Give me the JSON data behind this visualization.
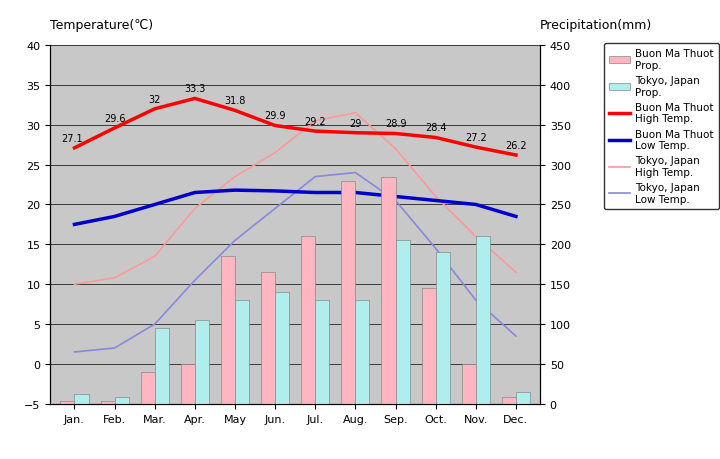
{
  "months": [
    "Jan.",
    "Feb.",
    "Mar.",
    "Apr.",
    "May",
    "Jun.",
    "Jul.",
    "Aug.",
    "Sep.",
    "Oct.",
    "Nov.",
    "Dec."
  ],
  "bmt_precip": [
    3,
    3,
    40,
    50,
    185,
    165,
    210,
    280,
    285,
    145,
    50,
    8
  ],
  "tokyo_precip": [
    12,
    8,
    95,
    105,
    130,
    140,
    130,
    130,
    205,
    190,
    210,
    15
  ],
  "bmt_high": [
    27.1,
    29.6,
    32.0,
    33.3,
    31.8,
    29.9,
    29.2,
    29.0,
    28.9,
    28.4,
    27.2,
    26.2
  ],
  "bmt_low": [
    17.5,
    18.5,
    20.0,
    21.5,
    21.8,
    21.7,
    21.5,
    21.5,
    21.0,
    20.5,
    20.0,
    18.5
  ],
  "tokyo_high": [
    10.0,
    10.8,
    13.5,
    19.5,
    23.5,
    26.5,
    30.5,
    31.5,
    27.0,
    21.0,
    16.0,
    11.5
  ],
  "tokyo_low": [
    1.5,
    2.0,
    5.0,
    10.5,
    15.5,
    19.5,
    23.5,
    24.0,
    20.5,
    14.5,
    8.0,
    3.5
  ],
  "bmt_high_labels": [
    "27.1",
    "29.6",
    "32",
    "33.3",
    "31.8",
    "29.9",
    "29.2",
    "29",
    "28.9",
    "28.4",
    "27.2",
    "26.2"
  ],
  "temp_ylim": [
    -5,
    40
  ],
  "precip_ylim": [
    0,
    450
  ],
  "temp_yticks": [
    -5,
    0,
    5,
    10,
    15,
    20,
    25,
    30,
    35,
    40
  ],
  "precip_yticks": [
    0,
    50,
    100,
    150,
    200,
    250,
    300,
    350,
    400,
    450
  ],
  "bar_width": 0.35,
  "bmt_bar_color": "#FFB6C1",
  "tokyo_bar_color": "#B0EEEE",
  "bmt_high_color": "#FF0000",
  "bmt_low_color": "#0000CC",
  "tokyo_high_color": "#FF9999",
  "tokyo_low_color": "#8888DD",
  "background_color": "#C8C8C8",
  "plot_bg_color": "#C8C8C8",
  "title_left": "Temperature(℃)",
  "title_right": "Precipitation(mm)",
  "legend_labels": [
    "Buon Ma Thuot\nProp.",
    "Tokyo, Japan\nProp.",
    "Buon Ma Thuot\nHigh Temp.",
    "Buon Ma Thuot\nLow Temp.",
    "Tokyo, Japan\nHigh Temp.",
    "Tokyo, Japan\nLow Temp."
  ]
}
